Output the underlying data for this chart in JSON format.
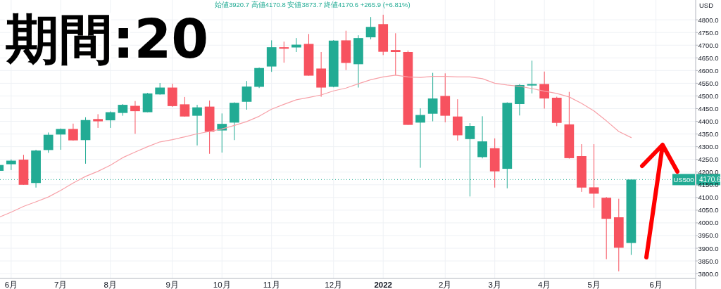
{
  "chart_data": {
    "type": "candlestick",
    "title": "期間:20",
    "ylabel": "USD",
    "categories": [
      null,
      "6月",
      null,
      null,
      null,
      "7月",
      null,
      null,
      null,
      "8月",
      null,
      null,
      null,
      null,
      "9月",
      null,
      null,
      null,
      "10月",
      null,
      null,
      null,
      "11月",
      null,
      null,
      null,
      null,
      "12月",
      null,
      null,
      null,
      "2022",
      null,
      null,
      null,
      null,
      "2月",
      null,
      null,
      null,
      "3月",
      null,
      null,
      null,
      "4月",
      null,
      null,
      null,
      "5月",
      null,
      null,
      null,
      null,
      "6月",
      null,
      null
    ],
    "series": [
      {
        "type": "candlestick",
        "ohlc": [
          [
            4205,
            4232,
            4200,
            4228
          ],
          [
            4231,
            4250,
            4208,
            4245
          ],
          [
            4249,
            4268,
            4150,
            4150
          ],
          [
            4157,
            4288,
            4139,
            4285
          ],
          [
            4287,
            4356,
            4276,
            4347
          ],
          [
            4348,
            4372,
            4288,
            4370
          ],
          [
            4370,
            4391,
            4324,
            4325
          ],
          [
            4326,
            4416,
            4233,
            4405
          ],
          [
            4409,
            4428,
            4374,
            4400
          ],
          [
            4404,
            4439,
            4374,
            4436
          ],
          [
            4433,
            4468,
            4422,
            4465
          ],
          [
            4461,
            4480,
            4351,
            4440
          ],
          [
            4436,
            4512,
            4436,
            4510
          ],
          [
            4506,
            4551,
            4505,
            4533
          ],
          [
            4533,
            4548,
            4457,
            4460
          ],
          [
            4467,
            4496,
            4419,
            4419
          ],
          [
            4422,
            4465,
            4305,
            4455
          ],
          [
            4458,
            4482,
            4272,
            4359
          ],
          [
            4364,
            4431,
            4277,
            4390
          ],
          [
            4395,
            4475,
            4326,
            4473
          ],
          [
            4477,
            4559,
            4446,
            4537
          ],
          [
            4536,
            4612,
            4531,
            4610
          ],
          [
            4616,
            4719,
            4595,
            4692
          ],
          [
            4692,
            4714,
            4631,
            4686
          ],
          [
            4691,
            4728,
            4673,
            4702
          ],
          [
            4705,
            4744,
            4580,
            4580
          ],
          [
            4608,
            4673,
            4497,
            4533
          ],
          [
            4536,
            4720,
            4534,
            4718
          ],
          [
            4719,
            4757,
            4602,
            4630
          ],
          [
            4625,
            4739,
            4533,
            4728
          ],
          [
            4731,
            4811,
            4723,
            4772
          ],
          [
            4783,
            4820,
            4661,
            4674
          ],
          [
            4681,
            4747,
            4582,
            4673
          ],
          [
            4673,
            4679,
            4386,
            4386
          ],
          [
            4395,
            4451,
            4217,
            4425
          ],
          [
            4430,
            4591,
            4400,
            4490
          ],
          [
            4500,
            4589,
            4396,
            4422
          ],
          [
            4419,
            4487,
            4324,
            4345
          ],
          [
            4330,
            4393,
            4104,
            4382
          ],
          [
            4259,
            4420,
            4254,
            4321
          ],
          [
            4294,
            4333,
            4139,
            4203
          ],
          [
            4213,
            4475,
            4136,
            4473
          ],
          [
            4468,
            4547,
            4423,
            4543
          ],
          [
            4541,
            4639,
            4510,
            4547
          ],
          [
            4547,
            4596,
            4450,
            4490
          ],
          [
            4493,
            4497,
            4381,
            4394
          ],
          [
            4388,
            4516,
            4253,
            4255
          ],
          [
            4263,
            4310,
            4122,
            4139
          ],
          [
            4140,
            4310,
            4059,
            4115
          ],
          [
            4099,
            4102,
            3857,
            4016
          ],
          [
            4022,
            4095,
            3809,
            3902
          ],
          [
            3920.7,
            4170.8,
            3873.7,
            4170.6
          ],
          null,
          null,
          null,
          null
        ],
        "colors": [
          "#22ab94",
          "#22ab94",
          "#f7525f",
          "#22ab94",
          "#22ab94",
          "#22ab94",
          "#f7525f",
          "#22ab94",
          "#f7525f",
          "#22ab94",
          "#22ab94",
          "#f7525f",
          "#22ab94",
          "#22ab94",
          "#f7525f",
          "#f7525f",
          "#22ab94",
          "#f7525f",
          "#22ab94",
          "#22ab94",
          "#22ab94",
          "#22ab94",
          "#22ab94",
          "#f7525f",
          "#22ab94",
          "#f7525f",
          "#f7525f",
          "#22ab94",
          "#f7525f",
          "#22ab94",
          "#22ab94",
          "#f7525f",
          "#f7525f",
          "#f7525f",
          "#22ab94",
          "#22ab94",
          "#f7525f",
          "#f7525f",
          "#22ab94",
          "#22ab94",
          "#f7525f",
          "#22ab94",
          "#22ab94",
          "#22ab94",
          "#f7525f",
          "#f7525f",
          "#f7525f",
          "#f7525f",
          "#f7525f",
          "#f7525f",
          "#f7525f",
          "#22ab94",
          null,
          null,
          null,
          null
        ]
      },
      {
        "type": "line",
        "color": "#f7a1a8",
        "values": [
          4022,
          4042,
          4065,
          4083,
          4102,
          4128,
          4157,
          4183,
          4203,
          4227,
          4257,
          4279,
          4300,
          4319,
          4328,
          4339,
          4351,
          4360,
          4370,
          4384,
          4399,
          4420,
          4448,
          4467,
          4485,
          4494,
          4504,
          4520,
          4531,
          4548,
          4564,
          4575,
          4582,
          4575,
          4573,
          4577,
          4577,
          4575,
          4575,
          4568,
          4550,
          4543,
          4538,
          4529,
          4519,
          4510,
          4496,
          4471,
          4441,
          4402,
          4360,
          4336,
          null,
          null,
          null,
          null
        ]
      }
    ],
    "ylim": [
      3781,
      4878
    ],
    "yticks": [
      {
        "value": 3800,
        "label": "3800.0"
      },
      {
        "value": 3850,
        "label": "3850.0"
      },
      {
        "value": 3900,
        "label": "3900.0"
      },
      {
        "value": 3950,
        "label": "3950.0"
      },
      {
        "value": 4000,
        "label": "4000.0"
      },
      {
        "value": 4050,
        "label": "4050.0"
      },
      {
        "value": 4100,
        "label": "4100.0"
      },
      {
        "value": 4150,
        "label": "4150.0"
      },
      {
        "value": 4200,
        "label": "4200.0"
      },
      {
        "value": 4250,
        "label": "4250.0"
      },
      {
        "value": 4300,
        "label": "4300.0"
      },
      {
        "value": 4350,
        "label": "4350.0"
      },
      {
        "value": 4400,
        "label": "4400.0"
      },
      {
        "value": 4450,
        "label": "4450.0"
      },
      {
        "value": 4500,
        "label": "4500.0"
      },
      {
        "value": 4550,
        "label": "4550.0"
      },
      {
        "value": 4600,
        "label": "4600.0"
      },
      {
        "value": 4650,
        "label": "4650.0"
      },
      {
        "value": 4700,
        "label": "4700.0"
      },
      {
        "value": 4750,
        "label": "4750.0"
      },
      {
        "value": 4800,
        "label": "4800.0"
      }
    ],
    "grid": true,
    "ref_lines": [
      {
        "axis": "y",
        "value": 4170.6,
        "label": "4170.6",
        "color": "#22ab94",
        "line_style": "dotted"
      }
    ],
    "annotations": [
      "始値3920.7 高値4170.8 安値3873.7 終値4170.6 +265.9 (+6.81%)",
      {
        "text": "US500",
        "y": 4170.6
      }
    ]
  }
}
